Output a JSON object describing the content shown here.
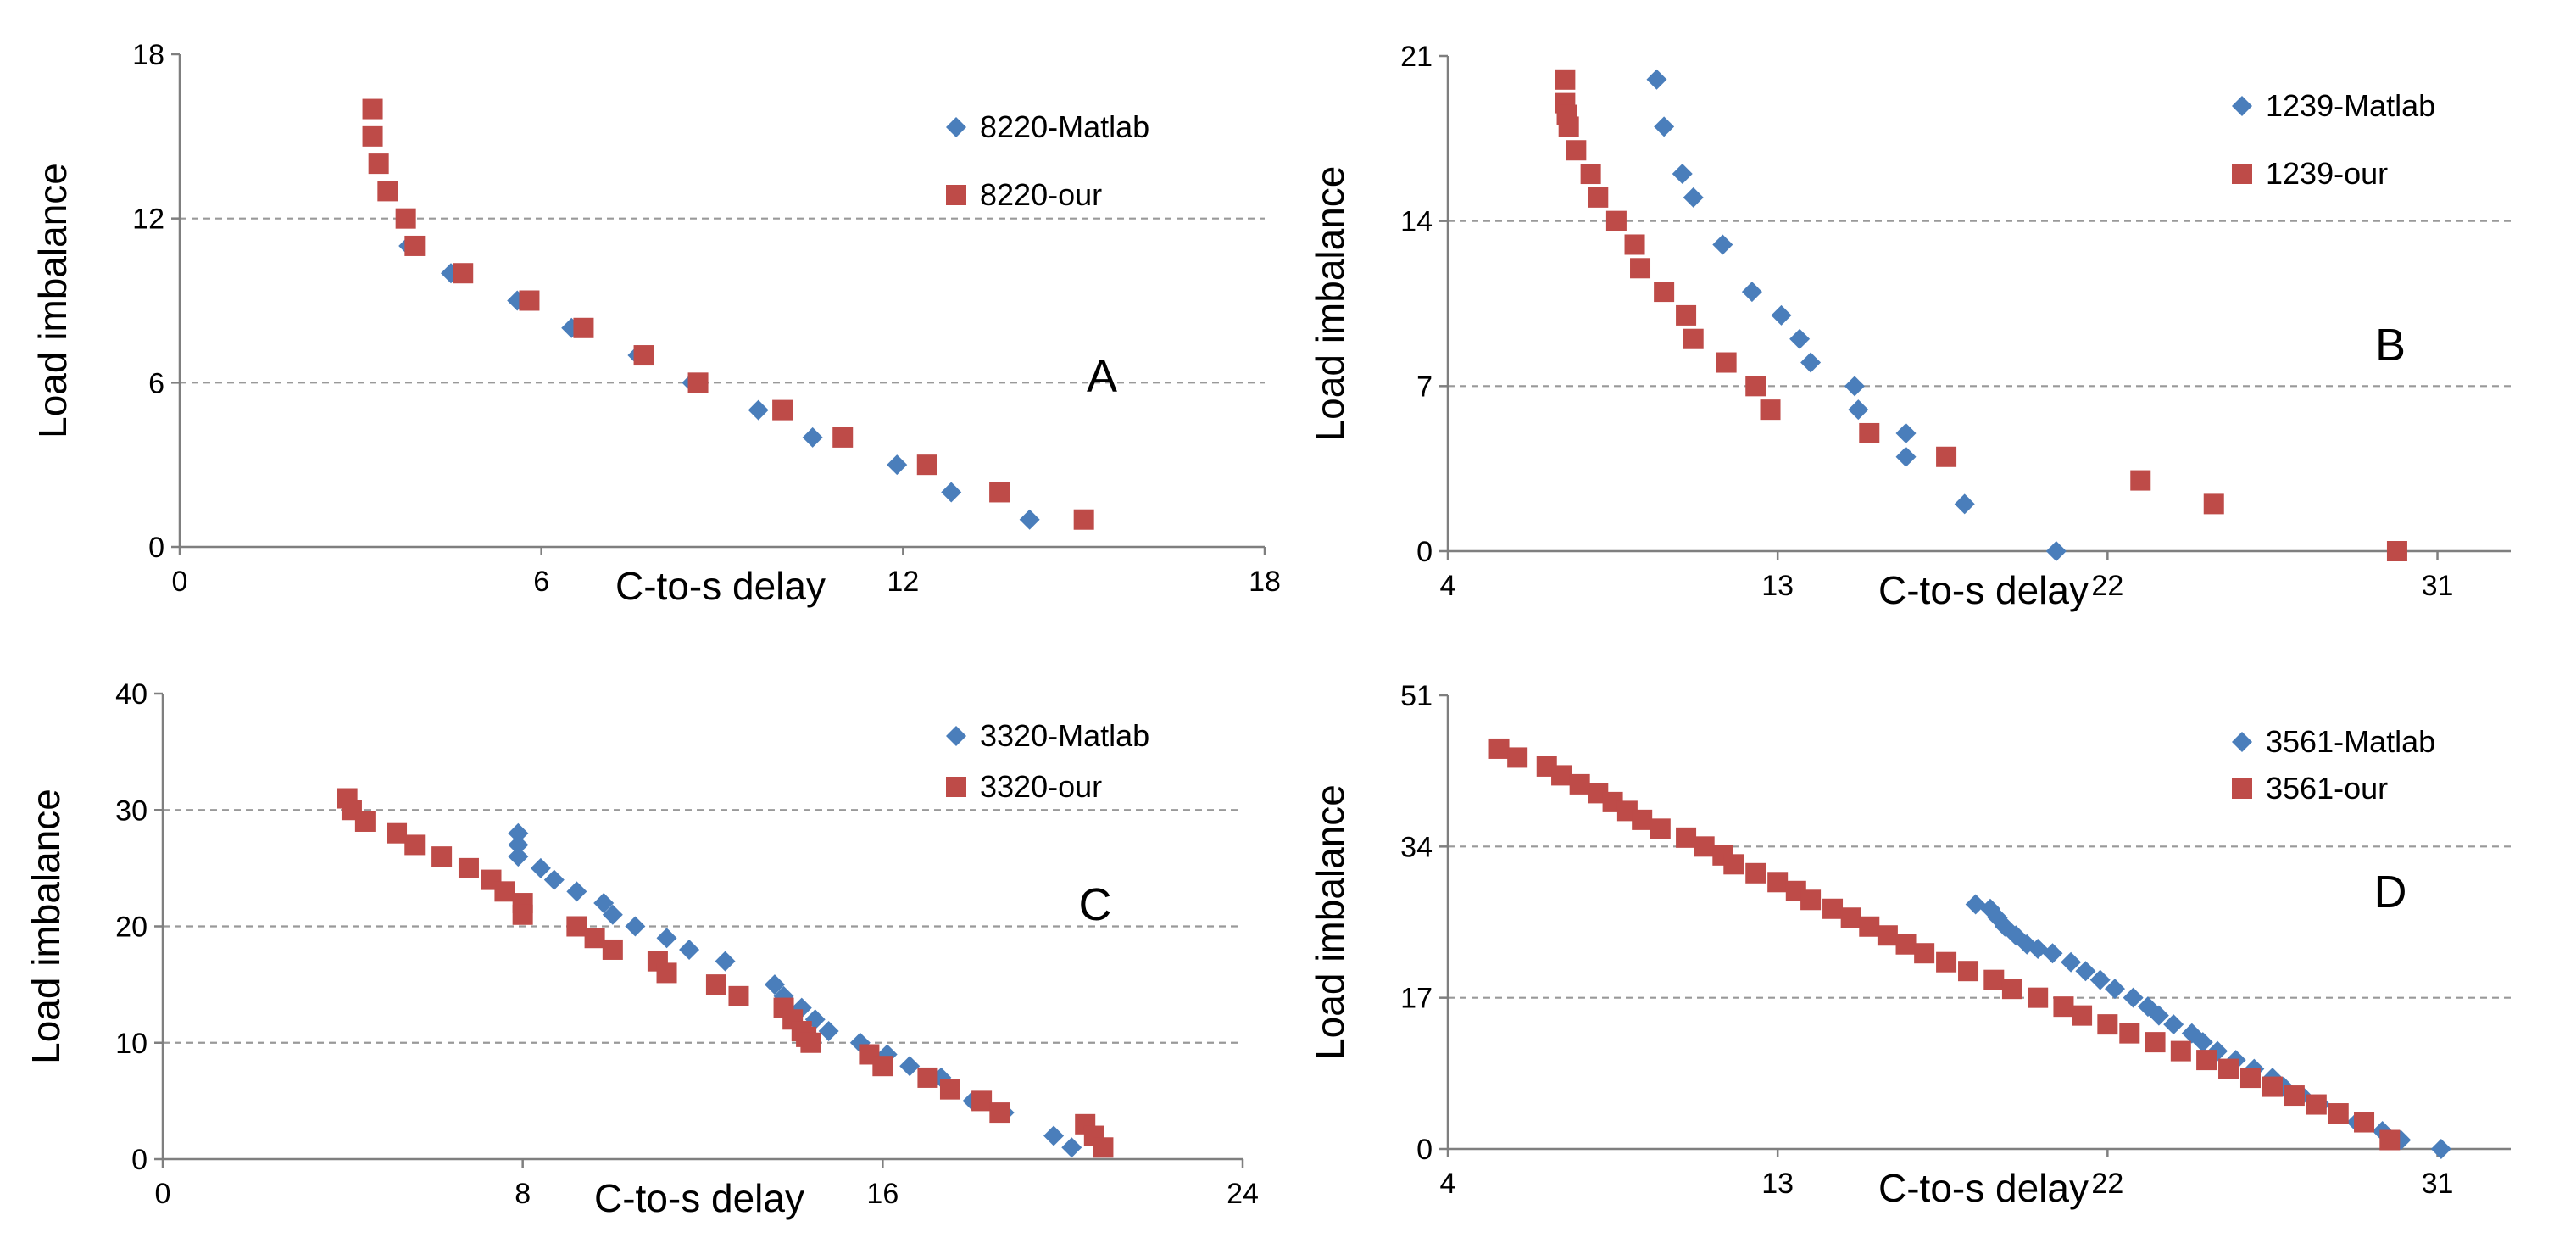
{
  "colors": {
    "matlab": "#4a7ebb",
    "our": "#be4b48",
    "grid": "#999999",
    "axis": "#7f7f7f"
  },
  "chart_data": [
    {
      "type": "scatter",
      "panel_label": "A",
      "xlabel": "C-to-s delay",
      "ylabel": "Load imbalance",
      "xlim": [
        0,
        18
      ],
      "ylim": [
        0,
        18
      ],
      "xticks": [
        "0",
        "6",
        "12",
        "18"
      ],
      "yticks": [
        "0",
        "6",
        "12",
        "18"
      ],
      "grid_y": [
        6,
        12
      ],
      "legend_position": "top-right",
      "series": [
        {
          "name": "8220-Matlab",
          "marker": "diamond",
          "x": [
            3.8,
            4.5,
            5.6,
            6.5,
            7.6,
            8.5,
            9.6,
            10.5,
            11.9,
            12.8,
            14.1
          ],
          "y": [
            11,
            10,
            9,
            8,
            7,
            6,
            5,
            4,
            3,
            2,
            1
          ]
        },
        {
          "name": "8220-our",
          "marker": "square",
          "x": [
            3.2,
            3.2,
            3.3,
            3.45,
            3.75,
            3.9,
            4.7,
            5.8,
            6.7,
            7.7,
            8.6,
            10.0,
            11.0,
            12.4,
            13.6,
            15.0
          ],
          "y": [
            16,
            15,
            14,
            13,
            12,
            11,
            10,
            9,
            8,
            7,
            6,
            5,
            4,
            3,
            2,
            1
          ]
        }
      ]
    },
    {
      "type": "scatter",
      "panel_label": "B",
      "xlabel": "C-to-s delay",
      "ylabel": "Load imbalance",
      "xlim": [
        4,
        33
      ],
      "ylim": [
        0,
        21
      ],
      "xticks": [
        "4",
        "13",
        "22",
        "31"
      ],
      "yticks": [
        "0",
        "7",
        "14",
        "21"
      ],
      "grid_y": [
        7,
        14
      ],
      "legend_position": "top-right",
      "series": [
        {
          "name": "1239-Matlab",
          "marker": "diamond",
          "x": [
            9.7,
            9.9,
            10.4,
            10.7,
            11.5,
            12.3,
            13.1,
            13.6,
            13.9,
            15.1,
            15.2,
            16.5,
            16.5,
            18.1,
            20.6
          ],
          "y": [
            20,
            18,
            16,
            15,
            13,
            11,
            10,
            9,
            8,
            7,
            6,
            5,
            4,
            2,
            0
          ]
        },
        {
          "name": "1239-our",
          "marker": "square",
          "x": [
            7.2,
            7.2,
            7.25,
            7.3,
            7.5,
            7.9,
            8.1,
            8.6,
            9.1,
            9.25,
            9.9,
            10.5,
            10.7,
            11.6,
            12.4,
            12.8,
            15.5,
            17.6,
            22.9,
            24.9,
            29.9
          ],
          "y": [
            20,
            19,
            18.5,
            18,
            17,
            16,
            15,
            14,
            13,
            12,
            11,
            10,
            9,
            8,
            7,
            6,
            5,
            4,
            3,
            2,
            0
          ]
        }
      ]
    },
    {
      "type": "scatter",
      "panel_label": "C",
      "xlabel": "C-to-s delay",
      "ylabel": "Load imbalance",
      "xlim": [
        0,
        24
      ],
      "ylim": [
        0,
        40
      ],
      "xticks": [
        "0",
        "8",
        "16",
        "24"
      ],
      "yticks": [
        "0",
        "10",
        "20",
        "30",
        "40"
      ],
      "grid_y": [
        10,
        20,
        30
      ],
      "legend_position": "top-right",
      "series": [
        {
          "name": "3320-Matlab",
          "marker": "diamond",
          "x": [
            7.9,
            7.9,
            7.9,
            8.4,
            8.7,
            9.2,
            9.8,
            10.0,
            10.5,
            11.2,
            11.7,
            12.5,
            13.6,
            13.8,
            14.2,
            14.5,
            14.8,
            15.5,
            16.1,
            16.6,
            17.3,
            18.0,
            18.7,
            19.8,
            20.2
          ],
          "y": [
            28,
            27,
            26,
            25,
            24,
            23,
            22,
            21,
            20,
            19,
            18,
            17,
            15,
            14,
            13,
            12,
            11,
            10,
            9,
            8,
            7,
            5,
            4,
            2,
            1
          ]
        },
        {
          "name": "3320-our",
          "marker": "square",
          "x": [
            4.1,
            4.2,
            4.5,
            5.2,
            5.6,
            6.2,
            6.8,
            7.3,
            7.6,
            8.0,
            8.0,
            9.2,
            9.6,
            10.0,
            11.0,
            11.2,
            12.3,
            12.8,
            13.8,
            14.0,
            14.2,
            14.3,
            14.4,
            15.7,
            16.0,
            17.0,
            17.5,
            18.2,
            18.6,
            20.5,
            20.7,
            20.9
          ],
          "y": [
            31,
            30,
            29,
            28,
            27,
            26,
            25,
            24,
            23,
            22,
            21,
            20,
            19,
            18,
            17,
            16,
            15,
            14,
            13,
            12,
            11,
            10.5,
            10,
            9,
            8,
            7,
            6,
            5,
            4,
            3,
            2,
            1
          ]
        }
      ]
    },
    {
      "type": "scatter",
      "panel_label": "D",
      "xlabel": "C-to-s delay",
      "ylabel": "Load imbalance",
      "xlim": [
        4,
        33
      ],
      "ylim": [
        0,
        51
      ],
      "xticks": [
        "4",
        "13",
        "22",
        "31"
      ],
      "yticks": [
        "0",
        "17",
        "34",
        "51"
      ],
      "grid_y": [
        17,
        34
      ],
      "legend_position": "top-right",
      "series": [
        {
          "name": "3561-Matlab",
          "marker": "diamond",
          "x": [
            18.4,
            18.8,
            19.0,
            19.2,
            19.5,
            19.8,
            20.1,
            20.5,
            21.0,
            21.4,
            21.8,
            22.2,
            22.7,
            23.1,
            23.4,
            23.8,
            24.3,
            24.6,
            25.0,
            25.5,
            26.0,
            26.5,
            26.8,
            27.3,
            27.8,
            28.3,
            28.8,
            29.5,
            30.0,
            31.1
          ],
          "y": [
            27.5,
            27,
            26,
            25,
            24,
            23,
            22.5,
            22,
            21,
            20,
            19,
            18,
            17,
            16,
            15,
            14,
            13,
            12,
            11,
            10,
            9,
            8,
            7,
            6,
            5,
            4,
            3,
            2,
            1,
            0
          ]
        },
        {
          "name": "3561-our",
          "marker": "square",
          "x": [
            5.4,
            5.9,
            6.7,
            7.1,
            7.6,
            8.1,
            8.5,
            8.9,
            9.3,
            9.8,
            10.5,
            11.0,
            11.5,
            11.8,
            12.4,
            13.0,
            13.5,
            13.9,
            14.5,
            15.0,
            15.5,
            16.0,
            16.5,
            17.0,
            17.6,
            18.2,
            18.9,
            19.4,
            20.1,
            20.8,
            21.3,
            22.0,
            22.6,
            23.3,
            24.0,
            24.7,
            25.3,
            25.9,
            26.5,
            27.1,
            27.7,
            28.3,
            29.0,
            29.7
          ],
          "y": [
            45,
            44,
            43,
            42,
            41,
            40,
            39,
            38,
            37,
            36,
            35,
            34,
            33,
            32,
            31,
            30,
            29,
            28,
            27,
            26,
            25,
            24,
            23,
            22,
            21,
            20,
            19,
            18,
            17,
            16,
            15,
            14,
            13,
            12,
            11,
            10,
            9,
            8,
            7,
            6,
            5,
            4,
            3,
            1
          ]
        }
      ]
    }
  ]
}
